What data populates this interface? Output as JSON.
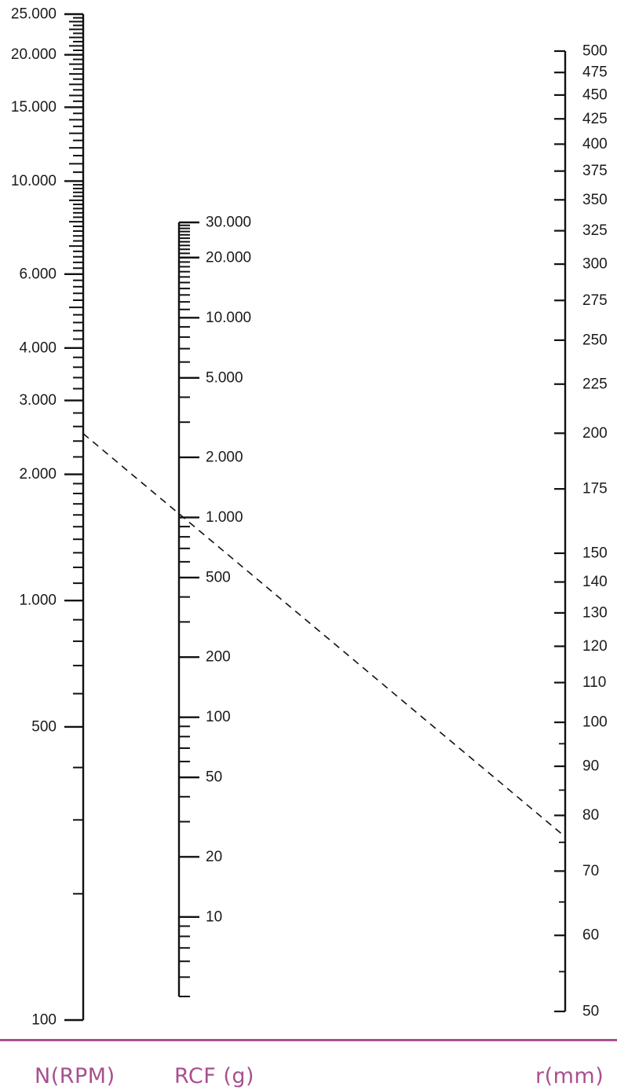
{
  "colors": {
    "accent": "#a8508e",
    "line": "#111111",
    "dashed_line": "#111111"
  },
  "axes": {
    "rpm": {
      "title": "N(RPM)",
      "labels": [
        {
          "v": 25000,
          "text": "25.000"
        },
        {
          "v": 20000,
          "text": "20.000"
        },
        {
          "v": 15000,
          "text": "15.000"
        },
        {
          "v": 10000,
          "text": "10.000"
        },
        {
          "v": 6000,
          "text": "6.000"
        },
        {
          "v": 4000,
          "text": "4.000"
        },
        {
          "v": 3000,
          "text": "3.000"
        },
        {
          "v": 2000,
          "text": "2.000"
        },
        {
          "v": 1000,
          "text": "1.000"
        },
        {
          "v": 500,
          "text": "500"
        },
        {
          "v": 100,
          "text": "100"
        }
      ]
    },
    "rcf": {
      "title": "RCF (g)",
      "labels": [
        {
          "v": 30000,
          "text": "30.000"
        },
        {
          "v": 20000,
          "text": "20.000"
        },
        {
          "v": 10000,
          "text": "10.000"
        },
        {
          "v": 5000,
          "text": "5.000"
        },
        {
          "v": 2000,
          "text": "2.000"
        },
        {
          "v": 1000,
          "text": "1.000"
        },
        {
          "v": 500,
          "text": "500"
        },
        {
          "v": 200,
          "text": "200"
        },
        {
          "v": 100,
          "text": "100"
        },
        {
          "v": 50,
          "text": "50"
        },
        {
          "v": 20,
          "text": "20"
        },
        {
          "v": 10,
          "text": "10"
        }
      ]
    },
    "radius": {
      "title": "r(mm)",
      "labels": [
        {
          "v": 500,
          "text": "500"
        },
        {
          "v": 475,
          "text": "475"
        },
        {
          "v": 450,
          "text": "450"
        },
        {
          "v": 425,
          "text": "425"
        },
        {
          "v": 400,
          "text": "400"
        },
        {
          "v": 375,
          "text": "375"
        },
        {
          "v": 350,
          "text": "350"
        },
        {
          "v": 325,
          "text": "325"
        },
        {
          "v": 300,
          "text": "300"
        },
        {
          "v": 275,
          "text": "275"
        },
        {
          "v": 250,
          "text": "250"
        },
        {
          "v": 225,
          "text": "225"
        },
        {
          "v": 200,
          "text": "200"
        },
        {
          "v": 175,
          "text": "175"
        },
        {
          "v": 150,
          "text": "150"
        },
        {
          "v": 140,
          "text": "140"
        },
        {
          "v": 130,
          "text": "130"
        },
        {
          "v": 120,
          "text": "120"
        },
        {
          "v": 110,
          "text": "110"
        },
        {
          "v": 100,
          "text": "100"
        },
        {
          "v": 90,
          "text": "90"
        },
        {
          "v": 80,
          "text": "80"
        },
        {
          "v": 70,
          "text": "70"
        },
        {
          "v": 60,
          "text": "60"
        },
        {
          "v": 50,
          "text": "50"
        }
      ]
    }
  },
  "example": {
    "rpm": 2500,
    "rcf": 550,
    "radius_mm": 76
  }
}
